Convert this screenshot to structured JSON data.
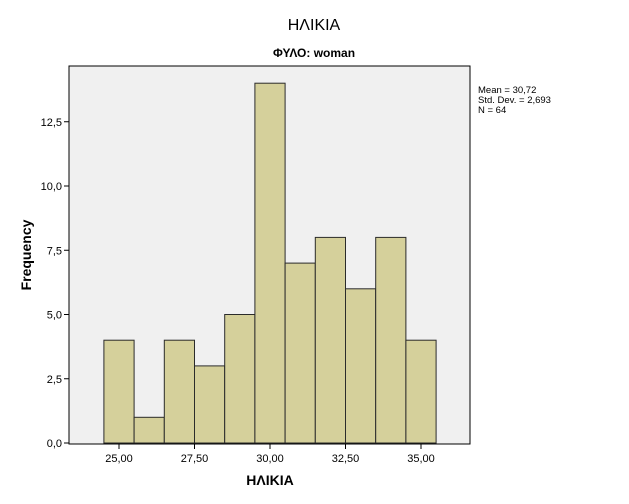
{
  "chart_data": {
    "type": "bar",
    "title": "ΗΛΙΚΙΑ",
    "subtitle": "ΦΥΛΟ: woman",
    "xlabel": "ΗΛΙΚΙΑ",
    "ylabel": "Frequency",
    "bin_width": 1.0,
    "x": [
      25.0,
      26.0,
      27.0,
      28.0,
      29.0,
      30.0,
      31.0,
      32.0,
      33.0,
      34.0,
      35.0
    ],
    "values": [
      4,
      1,
      4,
      3,
      5,
      14,
      7,
      8,
      6,
      8,
      4
    ],
    "xlim": [
      23.0,
      36.5
    ],
    "ylim": [
      0,
      14
    ],
    "x_ticks": [
      25.0,
      27.5,
      30.0,
      32.5,
      35.0
    ],
    "x_tick_labels": [
      "25,00",
      "27,50",
      "30,00",
      "32,50",
      "35,00"
    ],
    "y_ticks": [
      0,
      2.5,
      5.0,
      7.5,
      10.0,
      12.5
    ],
    "y_tick_labels": [
      "0,0",
      "2,5",
      "5,0",
      "7,5",
      "10,0",
      "12,5"
    ],
    "grid": false,
    "legend_position": "right",
    "stats": [
      "Mean = 30,72",
      "Std. Dev. = 2,693",
      "N = 64"
    ],
    "colors": {
      "bar_fill": "#d5d09b",
      "bar_stroke": "#2b2b2b",
      "plot_bg": "#f0f0f0"
    }
  }
}
